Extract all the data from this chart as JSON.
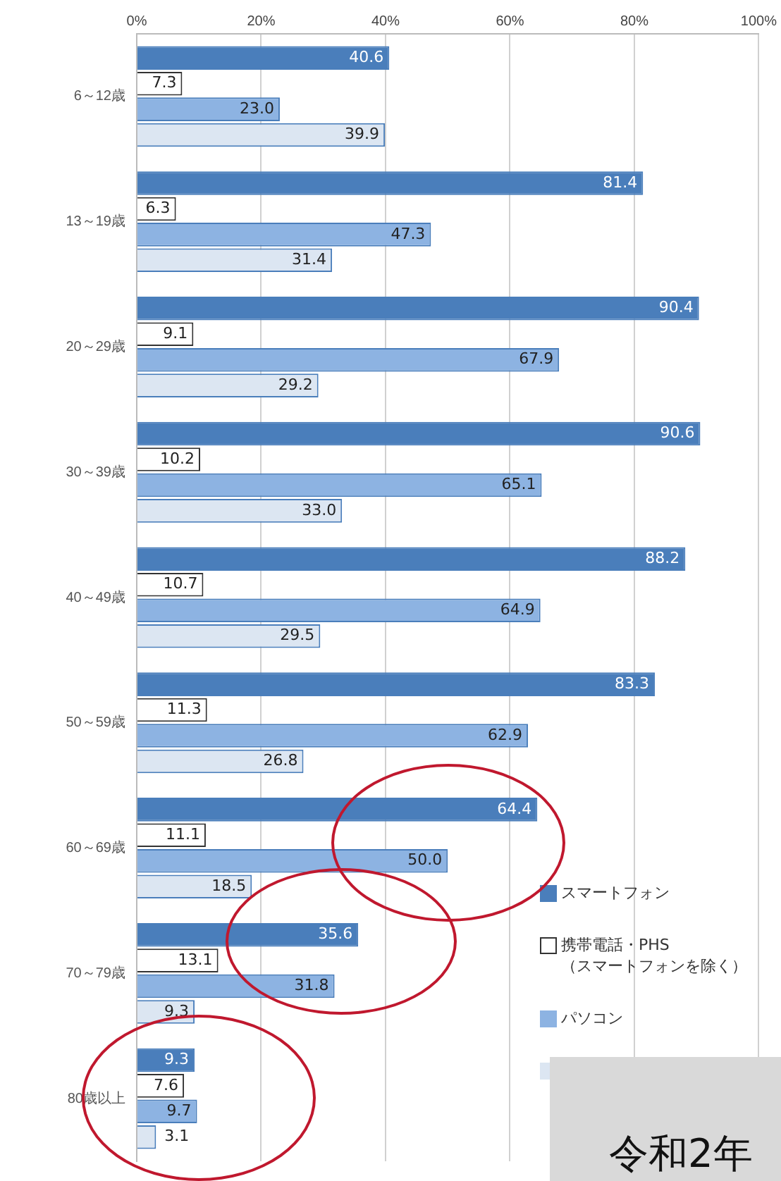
{
  "chart_data": {
    "type": "bar",
    "orientation": "horizontal",
    "categories": [
      "6～12歳",
      "13～19歳",
      "20～29歳",
      "30～39歳",
      "40～49歳",
      "50～59歳",
      "60～69歳",
      "70～79歳",
      "80歳以上"
    ],
    "series": [
      {
        "name": "スマートフォン",
        "color": "#4a7ebb",
        "values": [
          40.6,
          81.4,
          90.4,
          90.6,
          88.2,
          83.3,
          64.4,
          35.6,
          9.3
        ],
        "value_labels": [
          "40.6",
          "81.4",
          "90.4",
          "90.6",
          "88.2",
          "83.3",
          "64.4",
          "35.6",
          "9.3"
        ]
      },
      {
        "name": "携帯電話・PHS\n（スマートフォンを除く）",
        "color": "#ffffff",
        "values": [
          7.3,
          6.3,
          9.1,
          10.2,
          10.7,
          11.3,
          11.1,
          13.1,
          7.6
        ],
        "value_labels": [
          "7.3",
          "6.3",
          "9.1",
          "10.2",
          "10.7",
          "11.3",
          "11.1",
          "13.1",
          "7.6"
        ]
      },
      {
        "name": "パソコン",
        "color": "#8db3e2",
        "values": [
          23,
          47.3,
          67.9,
          65.1,
          64.9,
          62.9,
          50,
          31.8,
          9.7
        ],
        "value_labels": [
          "23.0",
          "47.3",
          "67.9",
          "65.1",
          "64.9",
          "62.9",
          "50.0",
          "31.8",
          "9.7"
        ]
      },
      {
        "color": "#dce6f2",
        "values": [
          39.9,
          31.4,
          29.2,
          33,
          29.5,
          26.8,
          18.5,
          9.3,
          3.1
        ],
        "value_labels": [
          "39.9",
          "31.4",
          "29.2",
          "33.0",
          "29.5",
          "26.8",
          "18.5",
          "9.3",
          "3.1"
        ]
      }
    ],
    "xlim": [
      0,
      100
    ],
    "xticks": [
      {
        "value": 0,
        "label": "0%"
      },
      {
        "value": 20,
        "label": "20%"
      },
      {
        "value": 40,
        "label": "40%"
      },
      {
        "value": 60,
        "label": "60%"
      },
      {
        "value": 80,
        "label": "80%"
      },
      {
        "value": 100,
        "label": "100%"
      }
    ],
    "grid": "x",
    "legend": "bottom right",
    "annotations": [
      "令和2年"
    ]
  }
}
